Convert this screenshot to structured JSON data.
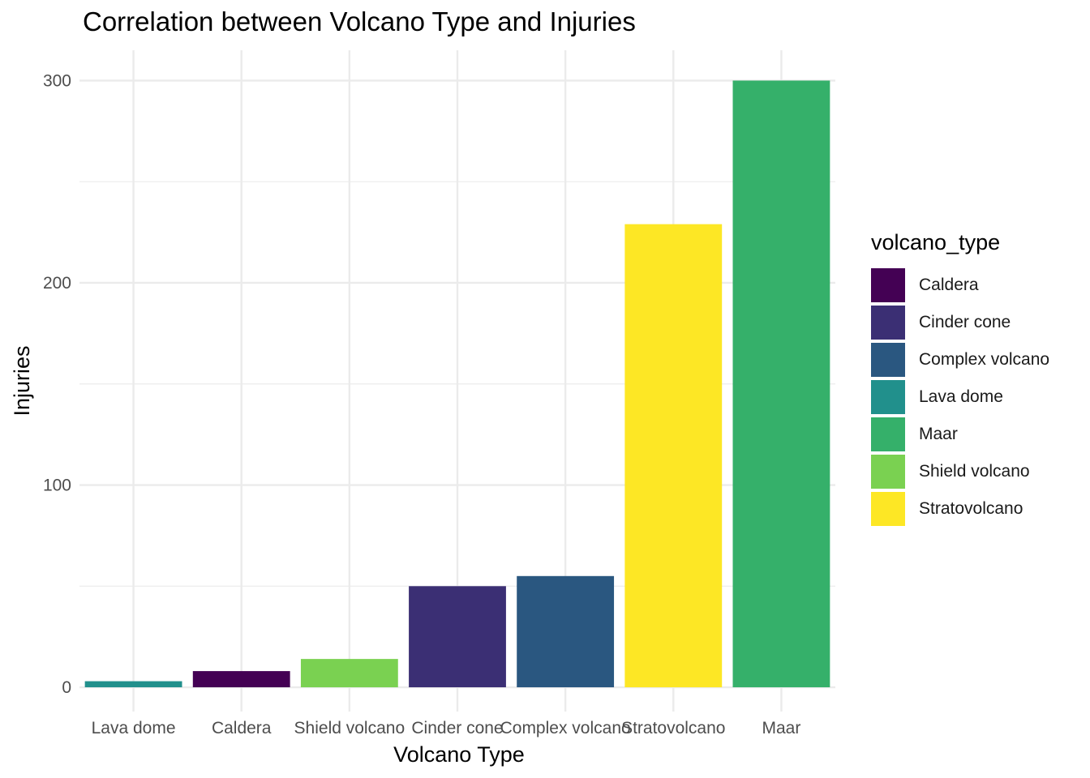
{
  "chart_data": {
    "type": "bar",
    "title": "Correlation between Volcano Type and Injuries",
    "xlabel": "Volcano Type",
    "ylabel": "Injuries",
    "categories": [
      "Lava dome",
      "Caldera",
      "Shield volcano",
      "Cinder cone",
      "Complex volcano",
      "Stratovolcano",
      "Maar"
    ],
    "values": [
      3,
      8,
      14,
      50,
      55,
      229,
      300
    ],
    "colors": [
      "#21908C",
      "#440154",
      "#7AD151",
      "#3B2F74",
      "#2A5780",
      "#FDE725",
      "#35B06A"
    ],
    "ylim": [
      -12,
      315
    ],
    "yticks": [
      0,
      100,
      200,
      300
    ],
    "grid": true,
    "legend": {
      "title": "volcano_type",
      "placement": "right",
      "items": [
        {
          "label": "Caldera",
          "color": "#440154"
        },
        {
          "label": "Cinder cone",
          "color": "#3B2F74"
        },
        {
          "label": "Complex volcano",
          "color": "#2A5780"
        },
        {
          "label": "Lava dome",
          "color": "#21908C"
        },
        {
          "label": "Maar",
          "color": "#35B06A"
        },
        {
          "label": "Shield volcano",
          "color": "#7AD151"
        },
        {
          "label": "Stratovolcano",
          "color": "#FDE725"
        }
      ]
    }
  }
}
